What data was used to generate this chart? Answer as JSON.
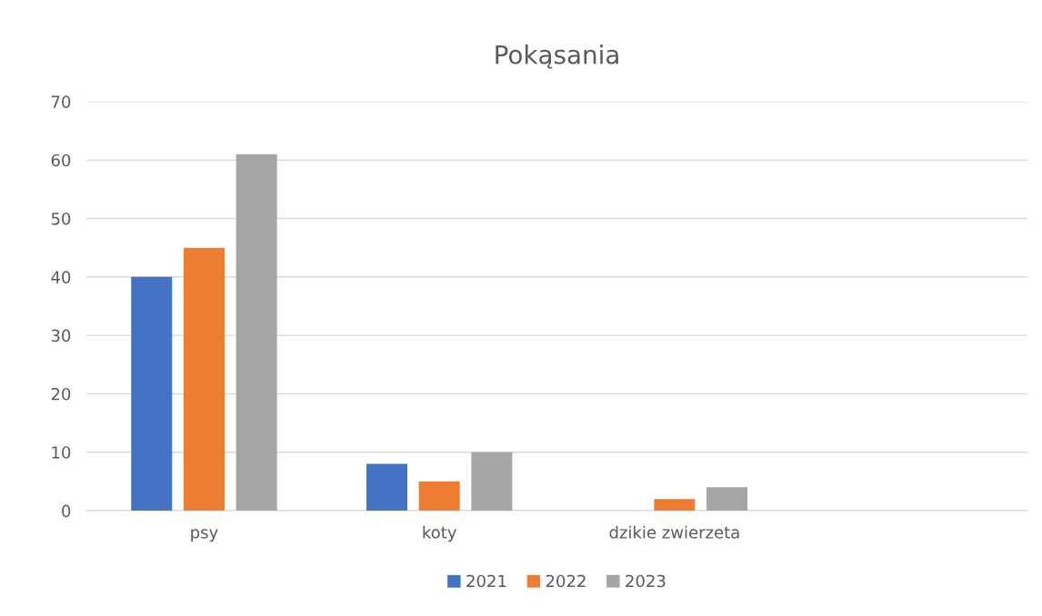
{
  "chart_data": {
    "type": "bar",
    "title": "Pokąsania",
    "categories": [
      "psy",
      "koty",
      "dzikie zwierzeta",
      null
    ],
    "series": [
      {
        "name": "2021",
        "color": "#4472c4",
        "values": [
          40,
          8,
          null,
          null
        ]
      },
      {
        "name": "2022",
        "color": "#ed7d31",
        "values": [
          45,
          5,
          2,
          null
        ]
      },
      {
        "name": "2023",
        "color": "#a5a5a5",
        "values": [
          61,
          10,
          4,
          null
        ]
      }
    ],
    "ylim": [
      0,
      70
    ],
    "yticks": [
      0,
      10,
      20,
      30,
      40,
      50,
      60,
      70
    ],
    "grid": "y",
    "legend": "bottom"
  }
}
